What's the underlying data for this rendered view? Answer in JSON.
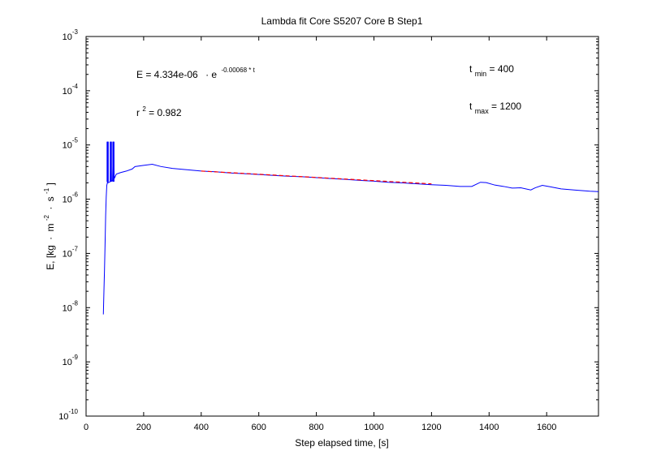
{
  "chart_data": {
    "type": "line",
    "title": "Lambda fit  Core S5207 Core B  Step1",
    "xlabel": "Step elapsed time, [s]",
    "ylabel": {
      "prefix": "E, [kg",
      "m": "m",
      "m_exp": "-2",
      "s": "s",
      "s_exp": "-1",
      "suffix": "]"
    },
    "xlim": [
      0,
      1780
    ],
    "ylim_exponents": [
      -10,
      -3
    ],
    "y_scale": "log",
    "grid": false,
    "x_ticks": [
      0,
      200,
      400,
      600,
      800,
      1000,
      1200,
      1400,
      1600
    ],
    "y_tick_base": "10",
    "y_tick_exponents": [
      "-10",
      "-9",
      "-8",
      "-7",
      "-6",
      "-5",
      "-4",
      "-3"
    ],
    "series": [
      {
        "color": "#0000ff",
        "points": [
          [
            60,
            7.5e-09
          ],
          [
            62,
            2e-08
          ],
          [
            64,
            5e-08
          ],
          [
            66,
            1.5e-07
          ],
          [
            68,
            5e-07
          ],
          [
            70,
            1.1e-06
          ],
          [
            72,
            1.8e-06
          ],
          [
            74,
            2e-06
          ],
          [
            75,
            1.15e-05
          ],
          [
            76,
            2e-06
          ],
          [
            80,
            2.05e-06
          ],
          [
            84,
            2.1e-06
          ],
          [
            86,
            1.15e-05
          ],
          [
            88,
            2.15e-06
          ],
          [
            92,
            2.2e-06
          ],
          [
            95,
            1.15e-05
          ],
          [
            98,
            2.4e-06
          ],
          [
            105,
            2.9e-06
          ],
          [
            120,
            3.1e-06
          ],
          [
            140,
            3.3e-06
          ],
          [
            160,
            3.6e-06
          ],
          [
            170,
            4e-06
          ],
          [
            200,
            4.2e-06
          ],
          [
            230,
            4.4e-06
          ],
          [
            260,
            4e-06
          ],
          [
            300,
            3.7e-06
          ],
          [
            350,
            3.5e-06
          ],
          [
            400,
            3.3e-06
          ],
          [
            450,
            3.2e-06
          ],
          [
            500,
            3.05e-06
          ],
          [
            550,
            2.95e-06
          ],
          [
            600,
            2.85e-06
          ],
          [
            650,
            2.75e-06
          ],
          [
            700,
            2.65e-06
          ],
          [
            750,
            2.6e-06
          ],
          [
            800,
            2.5e-06
          ],
          [
            850,
            2.4e-06
          ],
          [
            900,
            2.32e-06
          ],
          [
            950,
            2.22e-06
          ],
          [
            1000,
            2.15e-06
          ],
          [
            1050,
            2.05e-06
          ],
          [
            1100,
            2e-06
          ],
          [
            1150,
            1.92e-06
          ],
          [
            1200,
            1.85e-06
          ],
          [
            1250,
            1.8e-06
          ],
          [
            1300,
            1.72e-06
          ],
          [
            1340,
            1.72e-06
          ],
          [
            1370,
            2.05e-06
          ],
          [
            1390,
            2.02e-06
          ],
          [
            1420,
            1.82e-06
          ],
          [
            1450,
            1.72e-06
          ],
          [
            1480,
            1.6e-06
          ],
          [
            1510,
            1.62e-06
          ],
          [
            1545,
            1.48e-06
          ],
          [
            1560,
            1.62e-06
          ],
          [
            1585,
            1.8e-06
          ],
          [
            1610,
            1.7e-06
          ],
          [
            1650,
            1.55e-06
          ],
          [
            1700,
            1.47e-06
          ],
          [
            1750,
            1.4e-06
          ],
          [
            1780,
            1.38e-06
          ]
        ]
      },
      {
        "color": "#ff0000",
        "fit": {
          "a": 4.334e-06,
          "k": -0.00068,
          "x_start": 400,
          "x_end": 1200
        }
      }
    ],
    "annotations": {
      "equation_prefix": "E = 4.334e-06",
      "equation_dot": "· e",
      "equation_exponent": "-0.00068 * t",
      "r2_label": "r",
      "r2_exp": "2",
      "r2_value": " = 0.982",
      "tmin_label": "t",
      "tmin_sub": "min",
      "tmin_value": " = 400",
      "tmax_label": "t",
      "tmax_sub": "max",
      "tmax_value": " = 1200"
    }
  }
}
